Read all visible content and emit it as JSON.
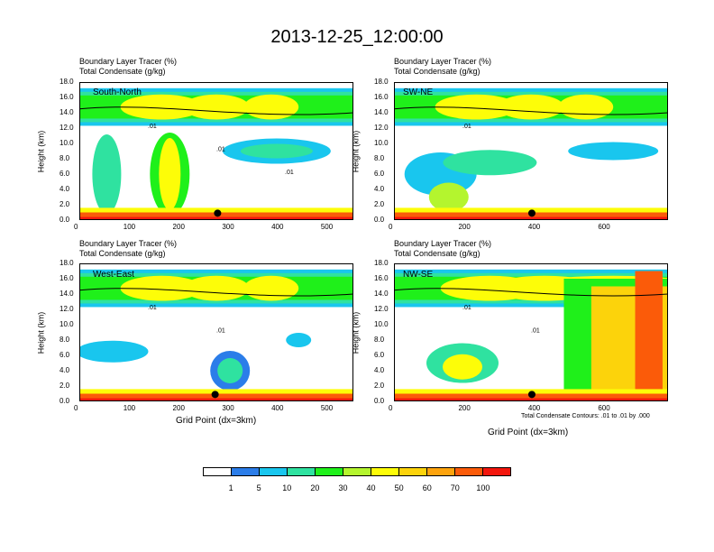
{
  "title": "2013-12-25_12:00:00",
  "colorbar": {
    "colors": [
      "#ffffff",
      "#2b7de9",
      "#19c6ee",
      "#2fe2a0",
      "#1ff01a",
      "#b4f52e",
      "#fdfd08",
      "#fcd30b",
      "#fda30d",
      "#fb5b09",
      "#f3160d"
    ],
    "labels": [
      "1",
      "5",
      "10",
      "20",
      "30",
      "40",
      "50",
      "60",
      "70",
      "100"
    ]
  },
  "footer_note": "Total Condensate Contours: .01 to .01 by .000",
  "chart_data": [
    {
      "type": "heatmap",
      "name": "South-North",
      "title_line1": "Boundary Layer Tracer   (%)",
      "title_line2": "Total Condensate   (g/kg)",
      "ylabel": "Height (km)",
      "xlabel": "",
      "xlim": [
        0,
        555
      ],
      "ylim": [
        0,
        18
      ],
      "xticks": [
        "0",
        "100",
        "200",
        "300",
        "400",
        "500"
      ],
      "yticks": [
        "0.0",
        "2.0",
        "4.0",
        "6.0",
        "8.0",
        "10.0",
        "12.0",
        "14.0",
        "16.0",
        "18.0"
      ],
      "contour_labels": [
        ".01",
        ".01",
        ".01"
      ],
      "marker_x": 280
    },
    {
      "type": "heatmap",
      "name": "SW-NE",
      "title_line1": "Boundary Layer Tracer   (%)",
      "title_line2": "Total Condensate   (g/kg)",
      "ylabel": "Height (km)",
      "xlabel": "",
      "xlim": [
        0,
        785
      ],
      "ylim": [
        0,
        18
      ],
      "xticks": [
        "0",
        "200",
        "400",
        "600"
      ],
      "yticks": [
        "0.0",
        "2.0",
        "4.0",
        "6.0",
        "8.0",
        "10.0",
        "12.0",
        "14.0",
        "16.0",
        "18.0"
      ],
      "contour_labels": [
        ".01"
      ],
      "marker_x": 395
    },
    {
      "type": "heatmap",
      "name": "West-East",
      "title_line1": "Boundary Layer Tracer   (%)",
      "title_line2": "Total Condensate   (g/kg)",
      "ylabel": "Height (km)",
      "xlabel": "Grid Point (dx=3km)",
      "xlim": [
        0,
        555
      ],
      "ylim": [
        0,
        18
      ],
      "xticks": [
        "0",
        "100",
        "200",
        "300",
        "400",
        "500"
      ],
      "yticks": [
        "0.0",
        "2.0",
        "4.0",
        "6.0",
        "8.0",
        "10.0",
        "12.0",
        "14.0",
        "16.0",
        "18.0"
      ],
      "contour_labels": [
        ".01",
        ".01"
      ],
      "marker_x": 275
    },
    {
      "type": "heatmap",
      "name": "NW-SE",
      "title_line1": "Boundary Layer Tracer   (%)",
      "title_line2": "Total Condensate   (g/kg)",
      "ylabel": "Height (km)",
      "xlabel": "Grid Point (dx=3km)",
      "xlim": [
        0,
        785
      ],
      "ylim": [
        0,
        18
      ],
      "xticks": [
        "0",
        "200",
        "400",
        "600"
      ],
      "yticks": [
        "0.0",
        "2.0",
        "4.0",
        "6.0",
        "8.0",
        "10.0",
        "12.0",
        "14.0",
        "16.0",
        "18.0"
      ],
      "contour_labels": [
        ".01",
        ".01"
      ],
      "marker_x": 395
    }
  ]
}
